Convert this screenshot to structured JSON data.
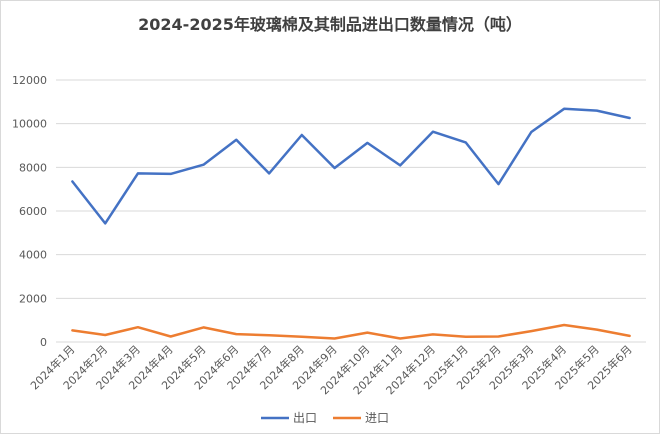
{
  "chart_data": {
    "type": "line",
    "title": "2024-2025年玻璃棉及其制品进出口数量情况（吨）",
    "categories": [
      "2024年1月",
      "2024年2月",
      "2024年3月",
      "2024年4月",
      "2024年5月",
      "2024年6月",
      "2024年7月",
      "2024年8月",
      "2024年9月",
      "2024年10月",
      "2024年11月",
      "2024年12月",
      "2025年1月",
      "2025年2月",
      "2025年3月",
      "2025年4月",
      "2025年5月",
      "2025年6月"
    ],
    "series": [
      {
        "name": "出口",
        "color": "#4472c4",
        "values": [
          7350,
          5430,
          7720,
          7700,
          8120,
          9260,
          7720,
          9480,
          7970,
          9120,
          8090,
          9630,
          9140,
          7230,
          9620,
          10680,
          10600,
          10260
        ]
      },
      {
        "name": "进口",
        "color": "#ed7d31",
        "values": [
          530,
          320,
          680,
          250,
          670,
          360,
          310,
          240,
          160,
          430,
          160,
          350,
          240,
          250,
          500,
          780,
          570,
          280
        ]
      }
    ],
    "ylim": [
      0,
      12000
    ],
    "yticks": [
      0,
      2000,
      4000,
      6000,
      8000,
      10000,
      12000
    ],
    "grid": true,
    "legend": "bottom"
  }
}
